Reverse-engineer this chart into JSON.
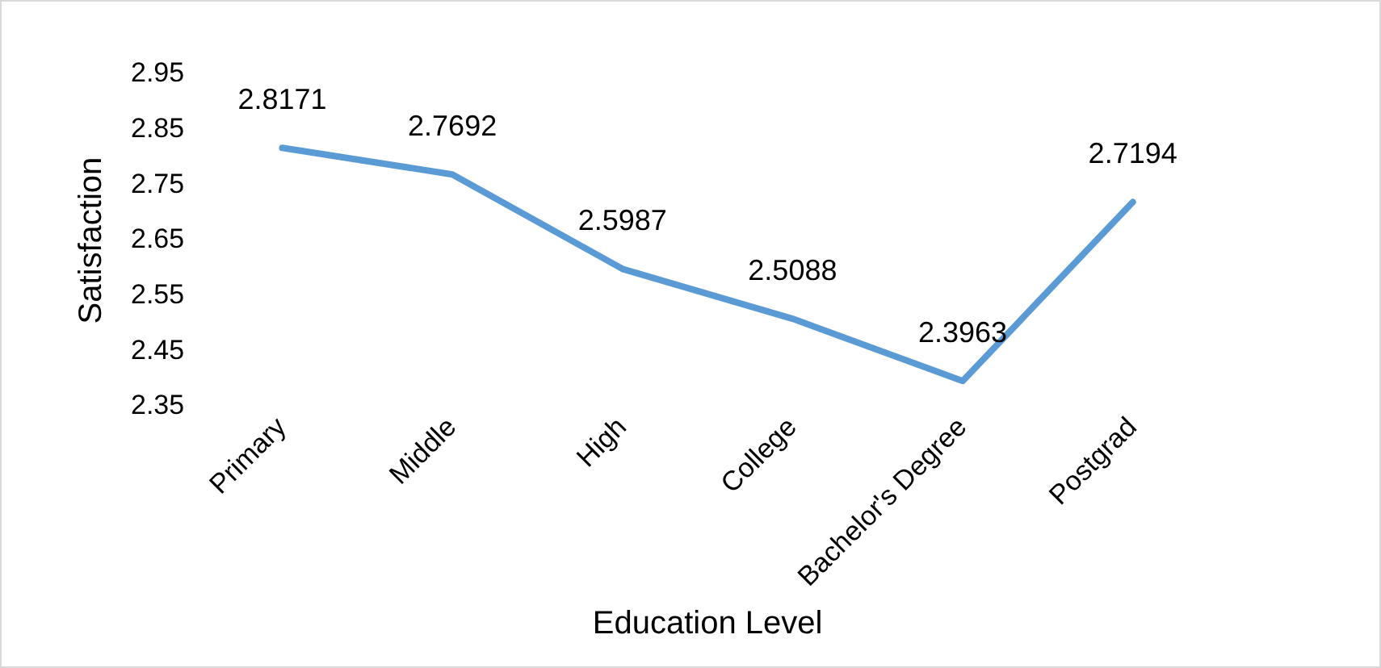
{
  "chart_data": {
    "type": "line",
    "xlabel": "Education Level",
    "ylabel": "Satisfaction",
    "categories": [
      "Primary",
      "Middle",
      "High",
      "College",
      "Bachelor's Degree",
      "Postgrad"
    ],
    "series": [
      {
        "color": "#5b9bd5",
        "values": [
          2.8171,
          2.7692,
          2.5987,
          2.5088,
          2.3963,
          2.7194
        ]
      }
    ],
    "ylim": [
      2.35,
      2.95
    ],
    "yticks": [
      2.35,
      2.45,
      2.55,
      2.65,
      2.75,
      2.85,
      2.95
    ],
    "grid": false,
    "legend": false,
    "marker": "none",
    "line_style": "solid",
    "data_labels": true
  }
}
